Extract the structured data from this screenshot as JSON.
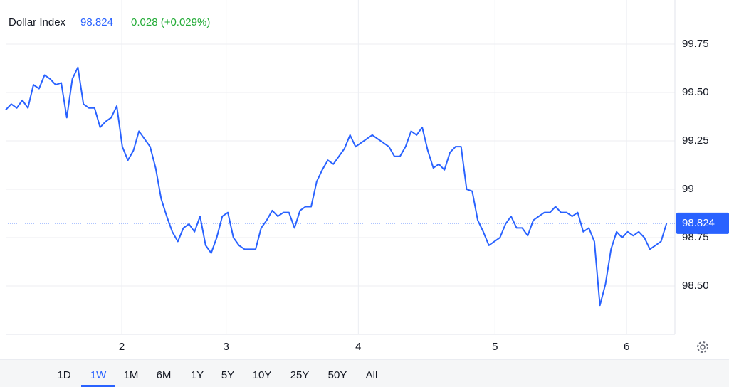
{
  "chart_data": {
    "type": "line",
    "title": "Dollar Index",
    "last_value": 98.824,
    "change": "0.028 (+0.029%)",
    "color": "#2962ff",
    "values": [
      99.41,
      99.44,
      99.42,
      99.46,
      99.42,
      99.54,
      99.52,
      99.59,
      99.57,
      99.54,
      99.55,
      99.37,
      99.57,
      99.63,
      99.44,
      99.42,
      99.42,
      99.32,
      99.35,
      99.37,
      99.43,
      99.22,
      99.15,
      99.2,
      99.3,
      99.26,
      99.22,
      99.11,
      98.95,
      98.86,
      98.78,
      98.73,
      98.8,
      98.82,
      98.78,
      98.86,
      98.71,
      98.67,
      98.75,
      98.86,
      98.88,
      98.75,
      98.71,
      98.69,
      98.69,
      98.69,
      98.8,
      98.84,
      98.89,
      98.86,
      98.88,
      98.88,
      98.8,
      98.89,
      98.91,
      98.91,
      99.04,
      99.1,
      99.15,
      99.13,
      99.17,
      99.21,
      99.28,
      99.22,
      99.24,
      99.26,
      99.28,
      99.26,
      99.24,
      99.22,
      99.17,
      99.17,
      99.22,
      99.3,
      99.28,
      99.32,
      99.2,
      99.11,
      99.13,
      99.1,
      99.19,
      99.22,
      99.22,
      99.0,
      98.99,
      98.84,
      98.78,
      98.71,
      98.73,
      98.75,
      98.82,
      98.86,
      98.8,
      98.8,
      98.76,
      98.84,
      98.86,
      98.88,
      98.88,
      98.91,
      98.88,
      98.88,
      98.86,
      98.88,
      98.78,
      98.8,
      98.73,
      98.4,
      98.51,
      98.69,
      98.78,
      98.75,
      98.78,
      98.76,
      98.78,
      98.75,
      98.69,
      98.71,
      98.73,
      98.824
    ],
    "xlim": [
      0,
      120.5
    ],
    "xticks": [
      {
        "value": 20.9,
        "label": "2"
      },
      {
        "value": 39.7,
        "label": "3"
      },
      {
        "value": 63.5,
        "label": "4"
      },
      {
        "value": 88.1,
        "label": "5"
      },
      {
        "value": 111.8,
        "label": "6"
      }
    ],
    "ylim": [
      98.25,
      99.978
    ],
    "yticks": [
      {
        "value": 98.5,
        "label": "98.50"
      },
      98.75,
      99,
      99.25,
      {
        "value": 99.5,
        "label": "99.50"
      },
      99.75
    ],
    "grid": true,
    "ranges": [
      "1D",
      "1W",
      "1M",
      "6M",
      "1Y",
      "5Y",
      "10Y",
      "25Y",
      "50Y",
      "All"
    ],
    "selected_range": 1
  }
}
